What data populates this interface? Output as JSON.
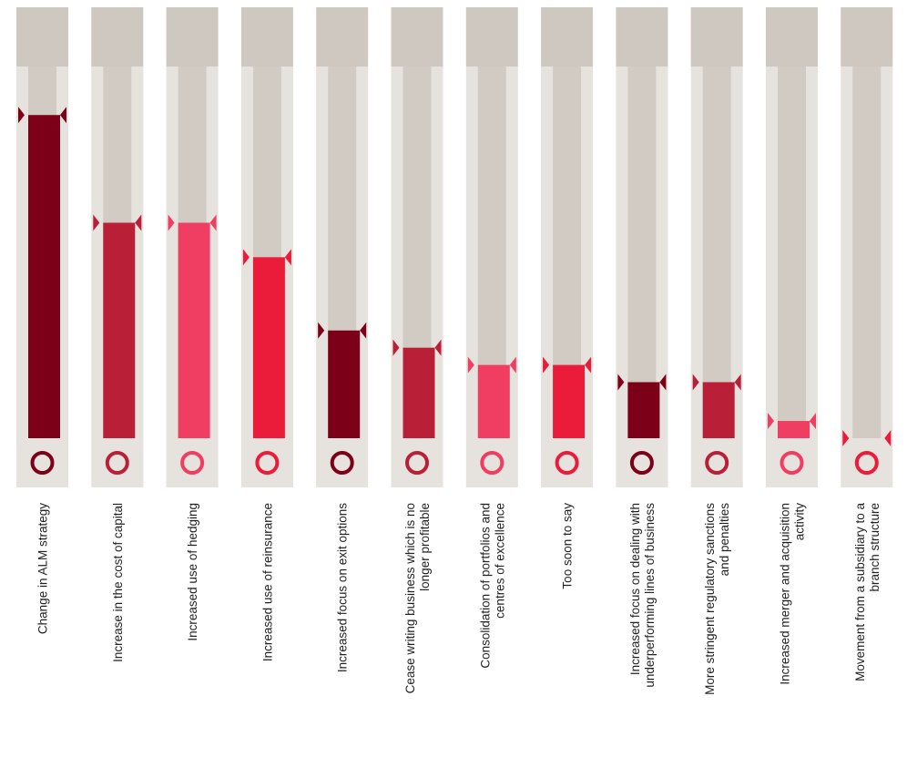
{
  "chart_data": {
    "type": "bar",
    "categories": [
      [
        "Change in ALM strategy"
      ],
      [
        "Increase in the cost of capital"
      ],
      [
        "Increased use of hedging"
      ],
      [
        "Increased use of reinsurance"
      ],
      [
        "Increased focus on exit options"
      ],
      [
        "Cease writing business which is no",
        "longer profitable"
      ],
      [
        "Consolidation of portfolios and",
        "centres of excellence"
      ],
      [
        "Too soon to say"
      ],
      [
        "Increased focus on dealing with",
        "underperforming lines of business"
      ],
      [
        "More stringent regulatory sanctions",
        "and penalties"
      ],
      [
        "Increased merger and acquisition",
        "activity"
      ],
      [
        "Movement from a subsidiary to a",
        "branch structure"
      ]
    ],
    "values": [
      75,
      50,
      50,
      42,
      25,
      21,
      17,
      17,
      13,
      13,
      4,
      0
    ],
    "colors": [
      "#7d0019",
      "#b91f36",
      "#ef3e62",
      "#eb1c3a",
      "#7d0019",
      "#b91f36",
      "#ef3e62",
      "#eb1c3a",
      "#7d0019",
      "#b91f36",
      "#ef3e62",
      "#eb1c3a"
    ],
    "ylim": [
      0,
      100
    ]
  }
}
